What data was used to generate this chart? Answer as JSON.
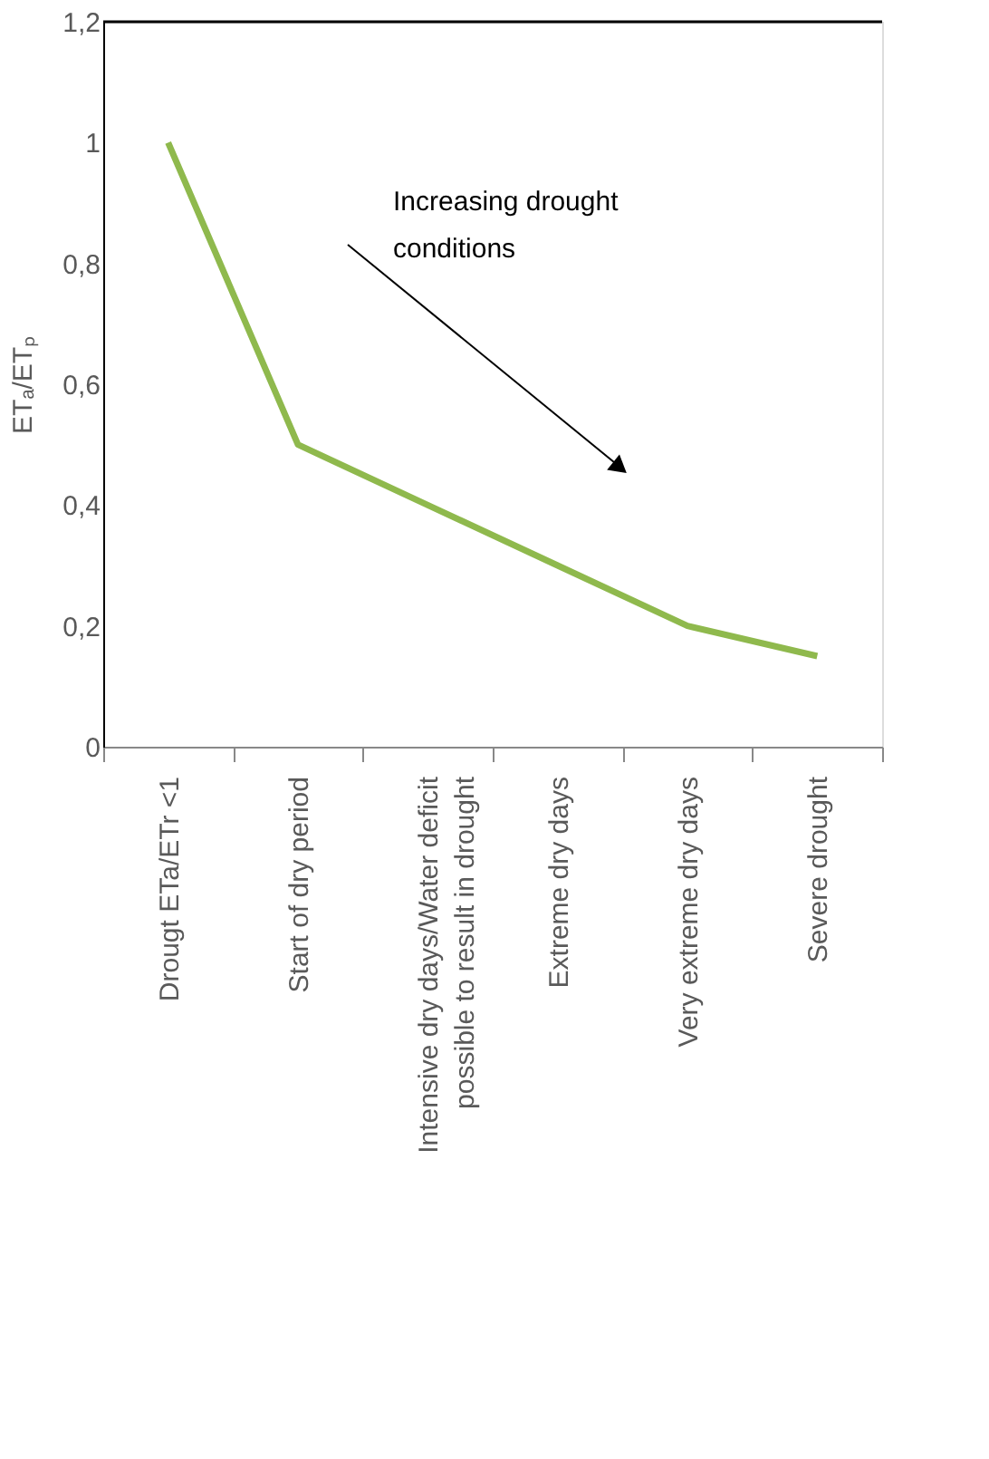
{
  "chart_data": {
    "type": "line",
    "categories": [
      "Drougt ETa/ETr <1",
      "Start of dry period",
      "Intensive dry days/Water deficit possible to result in drought",
      "Extreme dry days",
      "Very extreme dry days",
      "Severe drought"
    ],
    "series": [
      {
        "color": "#8fb94d",
        "values": [
          1,
          0.5,
          0.4,
          0.3,
          0.2,
          0.15
        ]
      }
    ],
    "ylabel": "ETₐ/ETₚ",
    "ylim": [
      0,
      1.2
    ],
    "yticks": [
      {
        "value": 0,
        "label": "0"
      },
      {
        "value": 0.2,
        "label": "0,2"
      },
      {
        "value": 0.4,
        "label": "0,4"
      },
      {
        "value": 0.6,
        "label": "0,6"
      },
      {
        "value": 0.8,
        "label": "0,8"
      },
      {
        "value": 1,
        "label": "1"
      },
      {
        "value": 1.2,
        "label": "1,2"
      }
    ],
    "annotations": [
      "Increasing drought conditions"
    ],
    "grid": false,
    "marker": "none",
    "line_style": "solid"
  }
}
